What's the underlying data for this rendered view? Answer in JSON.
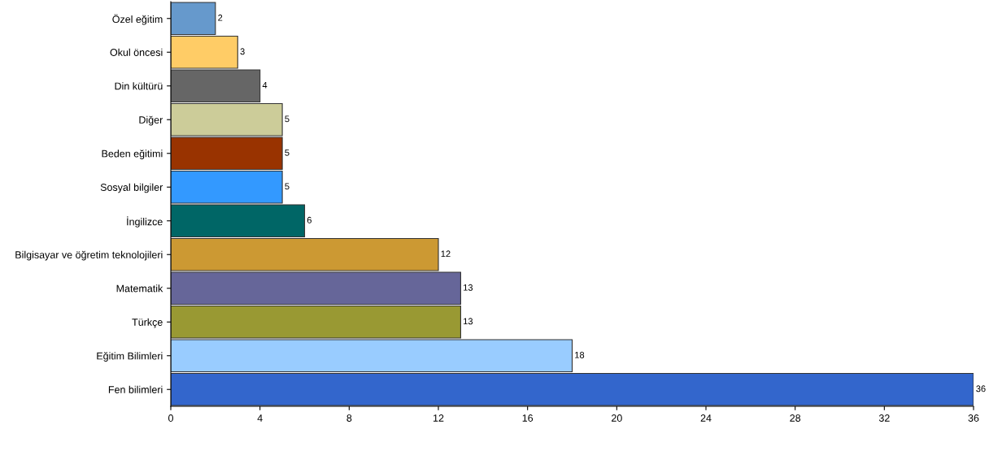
{
  "chart_data": {
    "type": "bar",
    "orientation": "horizontal",
    "categories": [
      "Özel eğitim",
      "Okul öncesi",
      "Din kültürü",
      "Diğer",
      "Beden eğitimi",
      "Sosyal bilgiler",
      "İngilizce",
      "Bilgisayar ve öğretim teknolojileri",
      "Matematik",
      "Türkçe",
      "Eğitim Bilimleri",
      "Fen bilimleri"
    ],
    "values": [
      2,
      3,
      4,
      5,
      5,
      5,
      6,
      12,
      13,
      13,
      18,
      36
    ],
    "colors": [
      "#6699cc",
      "#ffcc66",
      "#666666",
      "#cccc99",
      "#993300",
      "#3399ff",
      "#006666",
      "#cc9933",
      "#666699",
      "#999933",
      "#99ccff",
      "#3366cc"
    ],
    "xlim": [
      0,
      36
    ],
    "xticks": [
      0,
      4,
      8,
      12,
      16,
      20,
      24,
      28,
      32,
      36
    ],
    "grid": false,
    "data_labels": true
  }
}
